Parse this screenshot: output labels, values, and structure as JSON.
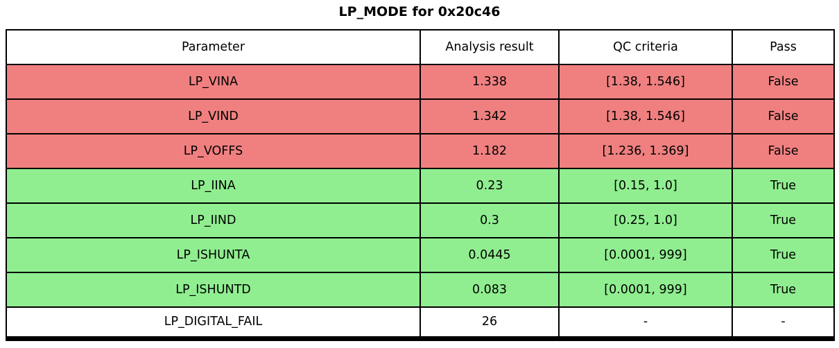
{
  "title": "LP_MODE for 0x20c46",
  "colors": {
    "fail": "#f08080",
    "pass": "#90ee90",
    "neutral": "#ffffff",
    "border": "#000000",
    "text": "#000000"
  },
  "table": {
    "columns": [
      "Parameter",
      "Analysis result",
      "QC criteria",
      "Pass"
    ],
    "rows": [
      {
        "parameter": "LP_VINA",
        "result": "1.338",
        "criteria": "[1.38, 1.546]",
        "pass": "False",
        "status": "fail"
      },
      {
        "parameter": "LP_VIND",
        "result": "1.342",
        "criteria": "[1.38, 1.546]",
        "pass": "False",
        "status": "fail"
      },
      {
        "parameter": "LP_VOFFS",
        "result": "1.182",
        "criteria": "[1.236, 1.369]",
        "pass": "False",
        "status": "fail"
      },
      {
        "parameter": "LP_IINA",
        "result": "0.23",
        "criteria": "[0.15, 1.0]",
        "pass": "True",
        "status": "pass"
      },
      {
        "parameter": "LP_IIND",
        "result": "0.3",
        "criteria": "[0.25, 1.0]",
        "pass": "True",
        "status": "pass"
      },
      {
        "parameter": "LP_ISHUNTA",
        "result": "0.0445",
        "criteria": "[0.0001, 999]",
        "pass": "True",
        "status": "pass"
      },
      {
        "parameter": "LP_ISHUNTD",
        "result": "0.083",
        "criteria": "[0.0001, 999]",
        "pass": "True",
        "status": "pass"
      },
      {
        "parameter": "LP_DIGITAL_FAIL",
        "result": "26",
        "criteria": "-",
        "pass": "-",
        "status": "neutral"
      }
    ]
  },
  "chart_data": {
    "type": "table",
    "title": "LP_MODE for 0x20c46",
    "columns": [
      "Parameter",
      "Analysis result",
      "QC criteria",
      "Pass"
    ],
    "rows": [
      [
        "LP_VINA",
        1.338,
        "[1.38, 1.546]",
        false
      ],
      [
        "LP_VIND",
        1.342,
        "[1.38, 1.546]",
        false
      ],
      [
        "LP_VOFFS",
        1.182,
        "[1.236, 1.369]",
        false
      ],
      [
        "LP_IINA",
        0.23,
        "[0.15, 1.0]",
        true
      ],
      [
        "LP_IIND",
        0.3,
        "[0.25, 1.0]",
        true
      ],
      [
        "LP_ISHUNTA",
        0.0445,
        "[0.0001, 999]",
        true
      ],
      [
        "LP_ISHUNTD",
        0.083,
        "[0.0001, 999]",
        true
      ],
      [
        "LP_DIGITAL_FAIL",
        26,
        "-",
        "-"
      ]
    ],
    "row_colors": [
      "fail",
      "fail",
      "fail",
      "pass",
      "pass",
      "pass",
      "pass",
      "neutral"
    ],
    "layout_hints": {
      "header_background": "#ffffff",
      "grid": true,
      "cell_text_align": "center"
    }
  }
}
